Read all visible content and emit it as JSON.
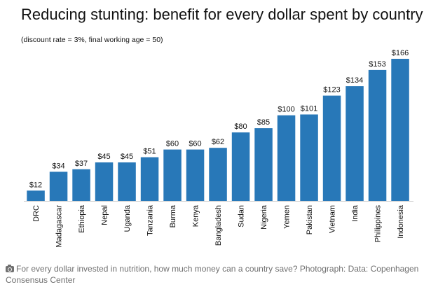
{
  "chart_data": {
    "type": "bar",
    "title": "Reducing stunting: benefit for every dollar spent by country",
    "subtitle": "(discount rate = 3%, final working age = 50)",
    "categories": [
      "DRC",
      "Madagascar",
      "Ethiopia",
      "Nepal",
      "Uganda",
      "Tanzania",
      "Burma",
      "Kenya",
      "Bangladesh",
      "Sudan",
      "Nigeria",
      "Yemen",
      "Pakistan",
      "Vietnam",
      "India",
      "Philippines",
      "Indonesia"
    ],
    "values": [
      12,
      34,
      37,
      45,
      45,
      51,
      60,
      60,
      62,
      80,
      85,
      100,
      101,
      123,
      134,
      153,
      166
    ],
    "data_labels": [
      "$12",
      "$34",
      "$37",
      "$45",
      "$45",
      "$51",
      "$60",
      "$60",
      "$62",
      "$80",
      "$85",
      "$100",
      "$101",
      "$123",
      "$134",
      "$153",
      "$166"
    ],
    "xlabel": "",
    "ylabel": "",
    "ylim": [
      0,
      166
    ],
    "grid": false,
    "bar_color": "#2878b8"
  },
  "caption": {
    "icon": "camera-icon",
    "text": "For every dollar invested in nutrition, how much money can a country save? Photograph: Data: Copenhagen Consensus Center"
  }
}
